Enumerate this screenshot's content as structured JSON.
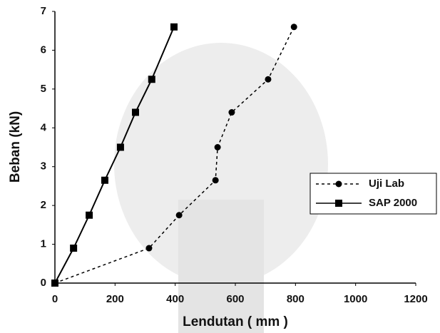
{
  "chart_data": {
    "type": "line",
    "xlabel": "Lendutan ( mm )",
    "ylabel": "Beban (kN)",
    "xlim": [
      0,
      1200
    ],
    "xticks": [
      0,
      200,
      400,
      600,
      800,
      1000,
      1200
    ],
    "ylim": [
      0,
      7
    ],
    "yticks": [
      0,
      1,
      2,
      3,
      4,
      5,
      6,
      7
    ],
    "grid": false,
    "legend": "right",
    "series": [
      {
        "name": "Uji Lab",
        "color": "#000000",
        "line_style": "dashed",
        "marker": "circle",
        "x": [
          0,
          313,
          413,
          534,
          541,
          588,
          709,
          795
        ],
        "values": [
          0,
          0.9,
          1.75,
          2.65,
          3.5,
          4.4,
          5.25,
          6.6
        ]
      },
      {
        "name": "SAP 2000",
        "color": "#000000",
        "line_style": "solid",
        "marker": "square",
        "x": [
          0,
          62,
          114,
          166,
          218,
          268,
          322,
          396
        ],
        "values": [
          0,
          0.9,
          1.75,
          2.65,
          3.5,
          4.4,
          5.25,
          6.6
        ]
      }
    ]
  }
}
